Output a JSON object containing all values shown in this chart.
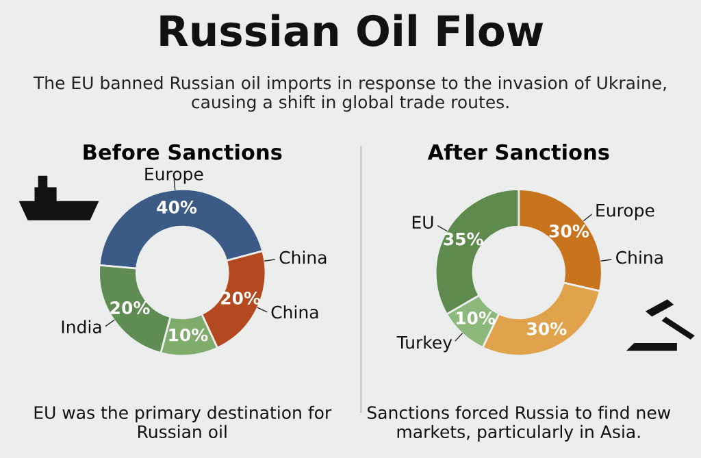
{
  "chart_data": [
    {
      "type": "other",
      "title": "Russian Oil Flow",
      "subtitle": "The EU banned Russian oil imports in response to the invasion of Ukraine, causing a shift in global trade routes."
    },
    {
      "type": "donut",
      "title": "Before Sanctions",
      "categories": [
        "Europe",
        "China",
        null,
        "India"
      ],
      "values": [
        40,
        20,
        10,
        20
      ],
      "value_labels": [
        "40%",
        "20%",
        "10%",
        "20%"
      ],
      "colors": [
        "#3b5b86",
        "#b4481e",
        "#7fab6c",
        "#5f8c52"
      ],
      "annotations": [
        "China",
        "EU was the primary destination for Russian oil"
      ]
    },
    {
      "type": "donut",
      "title": "After Sanctions",
      "categories": [
        "Europe",
        null,
        "Turkey",
        "EU"
      ],
      "values": [
        30,
        30,
        10,
        35
      ],
      "value_labels": [
        "30%",
        "30%",
        "10%",
        "35%"
      ],
      "colors": [
        "#c8741f",
        "#e1a24c",
        "#8cb97b",
        "#5e8b4d"
      ],
      "annotations": [
        "China",
        "Sanctions forced Russia to find new markets, particularly in Asia."
      ]
    }
  ]
}
